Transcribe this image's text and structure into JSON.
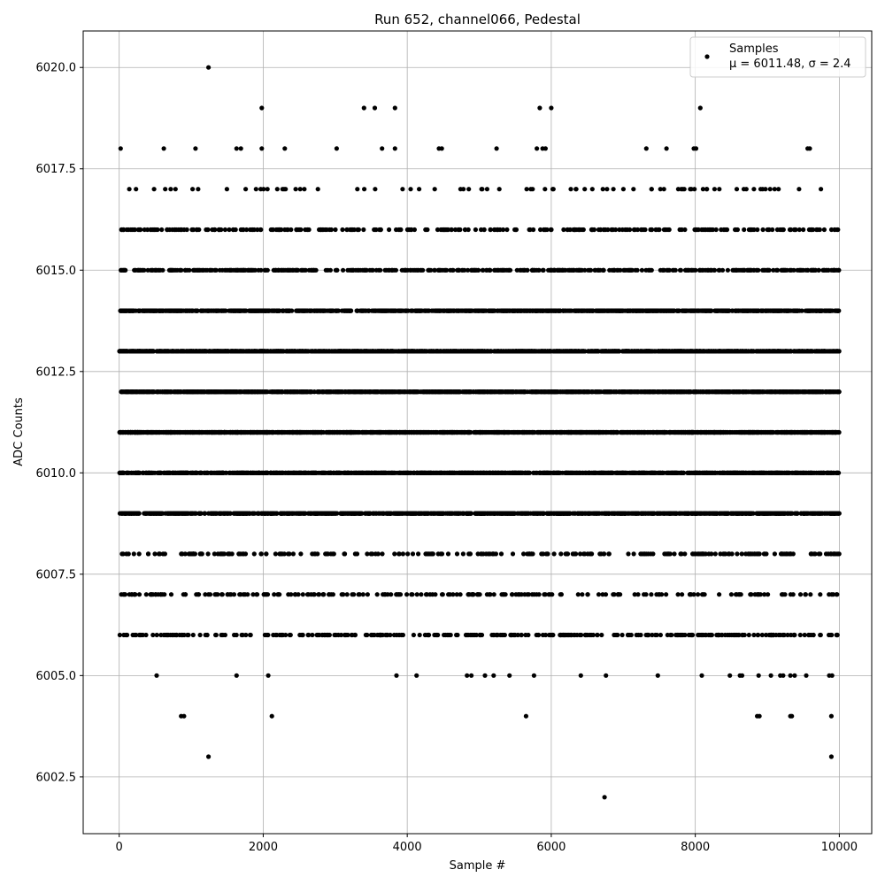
{
  "chart_data": {
    "type": "scatter",
    "title": "Run 652, channel066, Pedestal",
    "xlabel": "Sample #",
    "ylabel": "ADC Counts",
    "xlim": [
      -500,
      10450
    ],
    "ylim": [
      6001.1,
      6020.9
    ],
    "xticks": [
      0,
      2000,
      4000,
      6000,
      8000,
      10000
    ],
    "xtick_labels": [
      "0",
      "2000",
      "4000",
      "6000",
      "8000",
      "10000"
    ],
    "yticks": [
      6002.5,
      6005.0,
      6007.5,
      6010.0,
      6012.5,
      6015.0,
      6017.5,
      6020.0
    ],
    "ytick_labels": [
      "6002.5",
      "6005.0",
      "6007.5",
      "6010.0",
      "6012.5",
      "6015.0",
      "6017.5",
      "6020.0"
    ],
    "grid": true,
    "legend_position": "top-right",
    "series": [
      {
        "name": "Samples",
        "stats_label": "μ = 6011.48, σ = 2.4",
        "color": "#000000",
        "n_samples": 10000,
        "approximate_level_occupancy": [
          {
            "adc": 6002,
            "count": 1
          },
          {
            "adc": 6003,
            "count": 2
          },
          {
            "adc": 6004,
            "count": 8
          },
          {
            "adc": 6005,
            "count": 30
          },
          {
            "adc": 6006,
            "count": 330
          },
          {
            "adc": 6007,
            "count": 220
          },
          {
            "adc": 6008,
            "count": 260
          },
          {
            "adc": 6009,
            "count": 1150
          },
          {
            "adc": 6010,
            "count": 1450
          },
          {
            "adc": 6011,
            "count": 1700
          },
          {
            "adc": 6012,
            "count": 1700
          },
          {
            "adc": 6013,
            "count": 1450
          },
          {
            "adc": 6014,
            "count": 1150
          },
          {
            "adc": 6015,
            "count": 520
          },
          {
            "adc": 6016,
            "count": 320
          },
          {
            "adc": 6017,
            "count": 80
          },
          {
            "adc": 6018,
            "count": 25
          },
          {
            "adc": 6019,
            "count": 7
          },
          {
            "adc": 6020,
            "count": 1
          }
        ],
        "outlier_points": [
          [
            1240,
            6020
          ],
          [
            1240,
            6003
          ],
          [
            6740,
            6002
          ],
          [
            9890,
            6003
          ],
          [
            860,
            6004
          ],
          [
            900,
            6004
          ],
          [
            2120,
            6004
          ],
          [
            5650,
            6004
          ],
          [
            8860,
            6004
          ],
          [
            8890,
            6004
          ],
          [
            9320,
            6004
          ],
          [
            9340,
            6004
          ],
          [
            9890,
            6004
          ],
          [
            1980,
            6019
          ],
          [
            3400,
            6019
          ],
          [
            3550,
            6019
          ],
          [
            3830,
            6019
          ],
          [
            5840,
            6019
          ],
          [
            6000,
            6019
          ],
          [
            8070,
            6019
          ],
          [
            20,
            6018
          ],
          [
            620,
            6018
          ],
          [
            1060,
            6018
          ],
          [
            1630,
            6018
          ],
          [
            1690,
            6018
          ],
          [
            1980,
            6018
          ],
          [
            2300,
            6018
          ],
          [
            3020,
            6018
          ],
          [
            3650,
            6018
          ],
          [
            3830,
            6018
          ],
          [
            4440,
            6018
          ],
          [
            4480,
            6018
          ],
          [
            5240,
            6018
          ],
          [
            5800,
            6018
          ],
          [
            5880,
            6018
          ],
          [
            5920,
            6018
          ],
          [
            7320,
            6018
          ],
          [
            7600,
            6018
          ],
          [
            7980,
            6018
          ],
          [
            8010,
            6018
          ],
          [
            9560,
            6018
          ],
          [
            9590,
            6018
          ],
          [
            520,
            6005
          ],
          [
            1630,
            6005
          ],
          [
            2070,
            6005
          ],
          [
            3850,
            6005
          ],
          [
            4130,
            6005
          ],
          [
            4830,
            6005
          ],
          [
            4890,
            6005
          ],
          [
            5080,
            6005
          ],
          [
            5200,
            6005
          ],
          [
            5420,
            6005
          ],
          [
            5760,
            6005
          ],
          [
            6410,
            6005
          ],
          [
            6760,
            6005
          ],
          [
            7480,
            6005
          ],
          [
            8090,
            6005
          ],
          [
            8480,
            6005
          ],
          [
            8620,
            6005
          ],
          [
            8650,
            6005
          ],
          [
            8880,
            6005
          ],
          [
            9050,
            6005
          ],
          [
            9180,
            6005
          ],
          [
            9220,
            6005
          ],
          [
            9320,
            6005
          ],
          [
            9380,
            6005
          ],
          [
            9540,
            6005
          ],
          [
            9860,
            6005
          ],
          [
            9900,
            6005
          ]
        ]
      }
    ]
  }
}
